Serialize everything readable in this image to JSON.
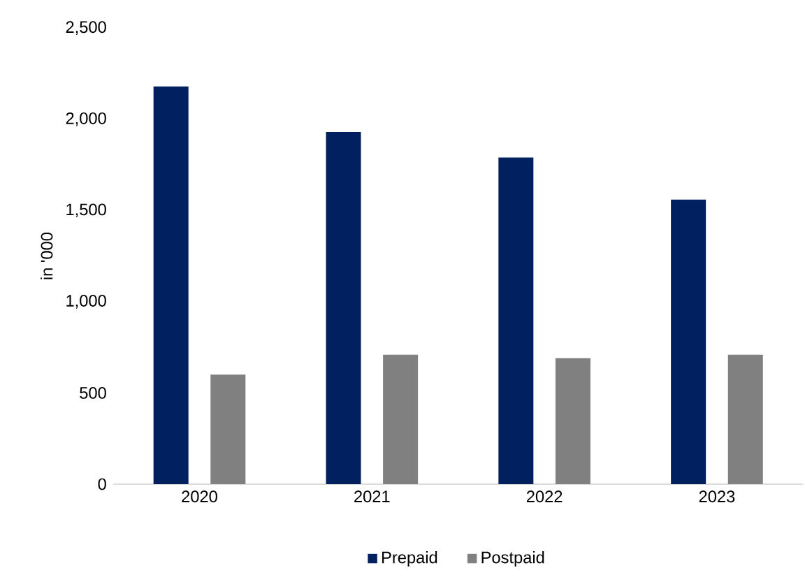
{
  "chart_data": {
    "type": "bar",
    "ylabel": "in '000",
    "categories": [
      "2020",
      "2021",
      "2022",
      "2023"
    ],
    "series": [
      {
        "name": "Prepaid",
        "color": "#002060",
        "values": [
          2180,
          1930,
          1790,
          1560
        ]
      },
      {
        "name": "Postpaid",
        "color": "#808080",
        "values": [
          600,
          710,
          690,
          710
        ]
      }
    ],
    "ylim": [
      0,
      2500
    ],
    "yticks": [
      {
        "value": 0,
        "label": "0"
      },
      {
        "value": 500,
        "label": "500"
      },
      {
        "value": 1000,
        "label": "1,000"
      },
      {
        "value": 1500,
        "label": "1,500"
      },
      {
        "value": 2000,
        "label": "2,000"
      },
      {
        "value": 2500,
        "label": "2,500"
      }
    ],
    "grid": false,
    "legend": "bottom"
  }
}
